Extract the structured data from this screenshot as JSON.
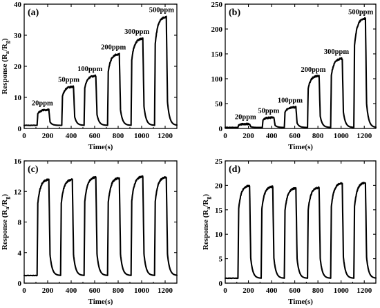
{
  "chart_data": [
    {
      "panel": "(a)",
      "type": "line",
      "xlabel": "Time(s)",
      "ylabel": [
        "Response (R",
        "a",
        "/R",
        "g",
        ")"
      ],
      "xlim": [
        0,
        1300
      ],
      "ylim": [
        0,
        40
      ],
      "xticks": [
        0,
        200,
        400,
        600,
        800,
        1000,
        1200
      ],
      "yticks": [
        0,
        10,
        20,
        30,
        40
      ],
      "baseline": 1.0,
      "pulses": [
        {
          "on": 110,
          "off": 210,
          "peak": 6.0
        },
        {
          "on": 320,
          "off": 420,
          "peak": 13.5
        },
        {
          "on": 510,
          "off": 610,
          "peak": 17.0
        },
        {
          "on": 710,
          "off": 810,
          "peak": 24.0
        },
        {
          "on": 910,
          "off": 1010,
          "peak": 29.0
        },
        {
          "on": 1110,
          "off": 1210,
          "peak": 36.0
        }
      ],
      "annotations": [
        {
          "text": "20ppm",
          "x": 155,
          "y": 7.5
        },
        {
          "text": "50ppm",
          "x": 380,
          "y": 15.0
        },
        {
          "text": "100ppm",
          "x": 560,
          "y": 18.5
        },
        {
          "text": "200ppm",
          "x": 760,
          "y": 25.5
        },
        {
          "text": "300ppm",
          "x": 960,
          "y": 30.5
        },
        {
          "text": "500ppm",
          "x": 1170,
          "y": 37.5
        }
      ]
    },
    {
      "panel": "(b)",
      "type": "line",
      "xlabel": "Time(s)",
      "ylabel": [],
      "xlim": [
        0,
        1300
      ],
      "ylim": [
        0,
        250
      ],
      "xticks": [
        0,
        200,
        400,
        600,
        800,
        1000,
        1200
      ],
      "yticks": [
        0,
        50,
        100,
        150,
        200,
        250
      ],
      "baseline": 2.0,
      "pulses": [
        {
          "on": 110,
          "off": 210,
          "peak": 9
        },
        {
          "on": 320,
          "off": 420,
          "peak": 22
        },
        {
          "on": 510,
          "off": 610,
          "peak": 43
        },
        {
          "on": 710,
          "off": 810,
          "peak": 106
        },
        {
          "on": 910,
          "off": 1010,
          "peak": 141
        },
        {
          "on": 1110,
          "off": 1210,
          "peak": 222
        }
      ],
      "annotations": [
        {
          "text": "20ppm",
          "x": 175,
          "y": 19
        },
        {
          "text": "50ppm",
          "x": 375,
          "y": 31
        },
        {
          "text": "100ppm",
          "x": 560,
          "y": 52
        },
        {
          "text": "200ppm",
          "x": 760,
          "y": 114
        },
        {
          "text": "300ppm",
          "x": 960,
          "y": 150
        },
        {
          "text": "500ppm",
          "x": 1170,
          "y": 230
        }
      ]
    },
    {
      "panel": "(c)",
      "type": "line",
      "xlabel": "Time(s)",
      "ylabel": [
        "Response (R",
        "a",
        "/R",
        "g",
        ")"
      ],
      "xlim": [
        0,
        1300
      ],
      "ylim": [
        0,
        16
      ],
      "xticks": [
        0,
        200,
        400,
        600,
        800,
        1000,
        1200
      ],
      "yticks": [
        0,
        4,
        8,
        12,
        16
      ],
      "baseline": 1.0,
      "pulses": [
        {
          "on": 110,
          "off": 210,
          "peak": 13.6
        },
        {
          "on": 310,
          "off": 410,
          "peak": 13.6
        },
        {
          "on": 510,
          "off": 610,
          "peak": 13.9
        },
        {
          "on": 710,
          "off": 810,
          "peak": 13.8
        },
        {
          "on": 910,
          "off": 1010,
          "peak": 14.0
        },
        {
          "on": 1110,
          "off": 1210,
          "peak": 13.9
        }
      ],
      "annotations": []
    },
    {
      "panel": "(d)",
      "type": "line",
      "xlabel": "Time(s)",
      "ylabel": [
        "Response (R",
        "a",
        "/R",
        "g",
        ")"
      ],
      "xlim": [
        0,
        1300
      ],
      "ylim": [
        0,
        25
      ],
      "xticks": [
        0,
        200,
        400,
        600,
        800,
        1000,
        1200
      ],
      "yticks": [
        0,
        5,
        10,
        15,
        20,
        25
      ],
      "baseline": 1.0,
      "pulses": [
        {
          "on": 110,
          "off": 210,
          "peak": 20.0
        },
        {
          "on": 310,
          "off": 410,
          "peak": 19.8
        },
        {
          "on": 510,
          "off": 610,
          "peak": 19.5
        },
        {
          "on": 710,
          "off": 810,
          "peak": 19.6
        },
        {
          "on": 910,
          "off": 1010,
          "peak": 20.5
        },
        {
          "on": 1110,
          "off": 1210,
          "peak": 20.6
        }
      ],
      "annotations": []
    }
  ]
}
